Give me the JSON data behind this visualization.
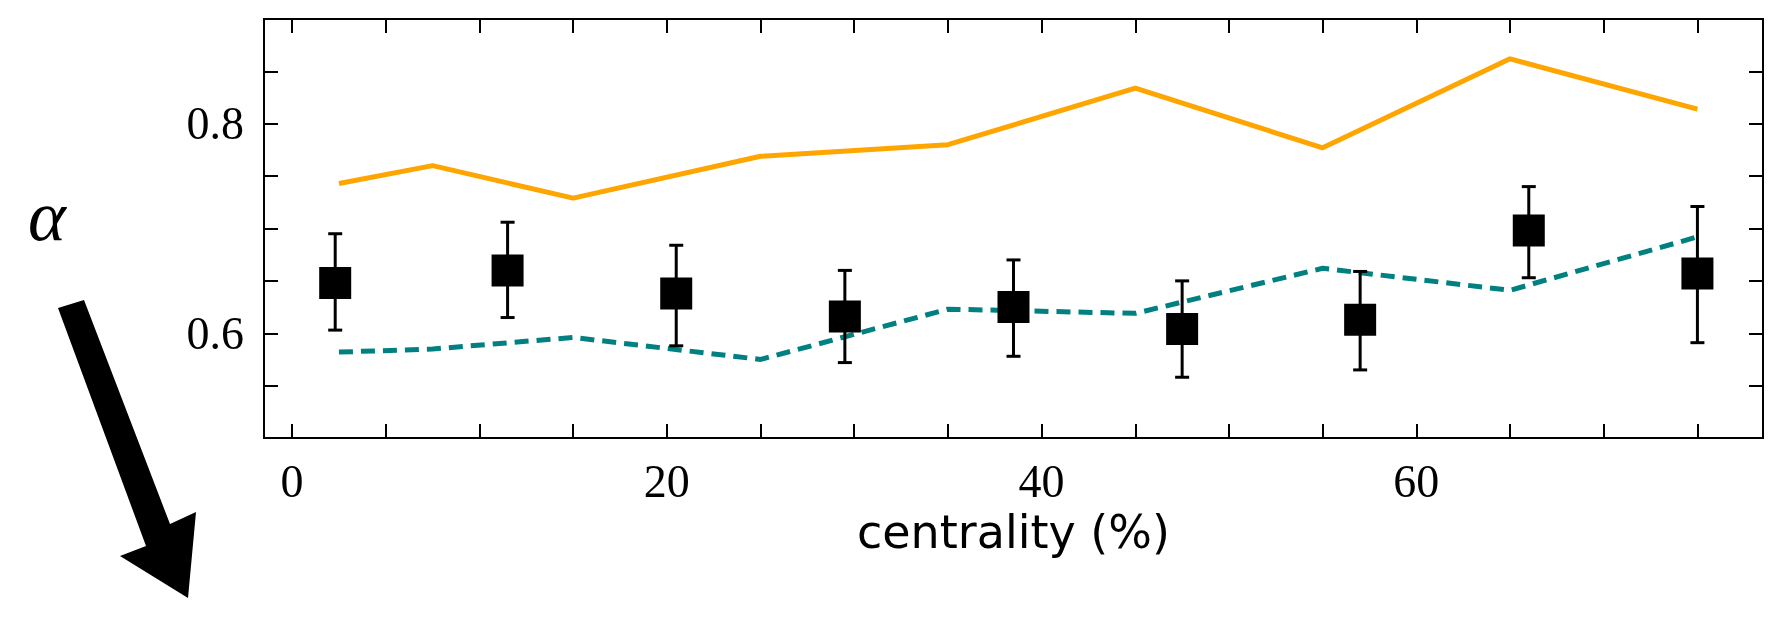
{
  "chart_data": {
    "type": "line",
    "xlabel": "centrality (%)",
    "ylabel": "α",
    "xlim": [
      -1.5,
      78.5
    ],
    "ylim": [
      0.5,
      0.9
    ],
    "xticks": [
      0,
      {
        "value": 5,
        "label": null
      },
      {
        "value": 10,
        "label": null
      },
      {
        "value": 15,
        "label": null
      },
      20,
      {
        "value": 25,
        "label": null
      },
      {
        "value": 30,
        "label": null
      },
      {
        "value": 35,
        "label": null
      },
      40,
      {
        "value": 45,
        "label": null
      },
      {
        "value": 50,
        "label": null
      },
      {
        "value": 55,
        "label": null
      },
      60,
      {
        "value": 65,
        "label": null
      },
      {
        "value": 70,
        "label": null
      },
      {
        "value": 75,
        "label": null
      }
    ],
    "yticks": [
      {
        "value": 0.55,
        "label": null
      },
      0.6,
      {
        "value": 0.65,
        "label": null
      },
      {
        "value": 0.7,
        "label": null
      },
      {
        "value": 0.75,
        "label": null
      },
      0.8,
      {
        "value": 0.85,
        "label": null
      }
    ],
    "grid": false,
    "series": [
      {
        "type": "line",
        "color": "#ffa500",
        "line_style": "solid",
        "marker": "none",
        "x": [
          2.5,
          7.5,
          15,
          25,
          35,
          45,
          55,
          65,
          75
        ],
        "values": [
          0.743,
          0.76,
          0.729,
          0.769,
          0.78,
          0.834,
          0.777,
          0.862,
          0.814
        ]
      },
      {
        "type": "line",
        "color": "#008080",
        "line_style": "dashed",
        "marker": "none",
        "x": [
          2.5,
          7.5,
          15,
          25,
          35,
          45,
          55,
          65,
          75
        ],
        "values": [
          0.582,
          0.585,
          0.596,
          0.575,
          0.623,
          0.619,
          0.662,
          0.641,
          0.692
        ]
      },
      {
        "type": "scatter",
        "color": "#000000",
        "marker": "square",
        "x": [
          2.3,
          11.5,
          20.5,
          29.5,
          38.5,
          47.5,
          57,
          66,
          75
        ],
        "values": [
          0.648,
          0.66,
          0.638,
          0.616,
          0.625,
          0.604,
          0.613,
          0.698,
          0.657
        ],
        "errors": [
          [
            0.603,
            0.695
          ],
          [
            0.615,
            0.706
          ],
          [
            0.588,
            0.684
          ],
          [
            0.572,
            0.66
          ],
          [
            0.578,
            0.67
          ],
          [
            0.558,
            0.65
          ],
          [
            0.565,
            0.659
          ],
          [
            0.653,
            0.74
          ],
          [
            0.591,
            0.721
          ]
        ]
      }
    ]
  }
}
